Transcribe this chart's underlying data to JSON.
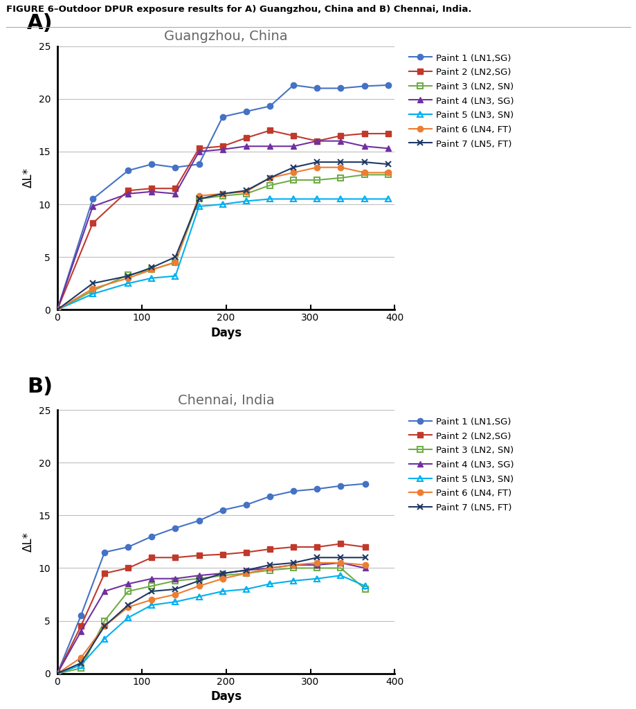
{
  "figure_title": "FIGURE 6–Outdoor DPUR exposure results for A) Guangzhou, China and B) Chennai, India.",
  "panel_A_title": "Guangzhou, China",
  "panel_B_title": "Chennai, India",
  "xlabel": "Days",
  "ylabel": "ΔL*",
  "ylim": [
    0,
    25
  ],
  "yticks": [
    0,
    5,
    10,
    15,
    20,
    25
  ],
  "xlim": [
    0,
    400
  ],
  "xticks": [
    0,
    100,
    200,
    300,
    400
  ],
  "legend_labels": [
    "Paint 1 (LN1,SG)",
    "Paint 2 (LN2,SG)",
    "Paint 3 (LN2, SN)",
    "Paint 4 (LN3, SG)",
    "Paint 5 (LN3, SN)",
    "Paint 6 (LN4, FT)",
    "Paint 7 (LN5, FT)"
  ],
  "colors": [
    "#4472C4",
    "#C0392B",
    "#70AD47",
    "#7030A0",
    "#00B0F0",
    "#ED7D31",
    "#1F3864"
  ],
  "markers": [
    "o",
    "s",
    "s",
    "^",
    "^",
    "o",
    "x"
  ],
  "marker_filled": [
    true,
    true,
    false,
    true,
    false,
    true,
    false
  ],
  "panel_A": {
    "paint1": {
      "x": [
        0,
        42,
        84,
        112,
        140,
        168,
        196,
        224,
        252,
        280,
        308,
        336,
        364,
        392
      ],
      "y": [
        0,
        10.5,
        13.2,
        13.8,
        13.5,
        13.8,
        18.3,
        18.8,
        19.3,
        21.3,
        21.0,
        21.0,
        21.2,
        21.3
      ]
    },
    "paint2": {
      "x": [
        0,
        42,
        84,
        112,
        140,
        168,
        196,
        224,
        252,
        280,
        308,
        336,
        364,
        392
      ],
      "y": [
        0,
        8.2,
        11.3,
        11.5,
        11.5,
        15.3,
        15.5,
        16.3,
        17.0,
        16.5,
        16.0,
        16.5,
        16.7,
        16.7
      ]
    },
    "paint3": {
      "x": [
        0,
        42,
        84,
        112,
        140,
        168,
        196,
        224,
        252,
        280,
        308,
        336,
        364,
        392
      ],
      "y": [
        0,
        1.8,
        3.3,
        3.8,
        4.5,
        10.5,
        10.8,
        11.0,
        11.8,
        12.3,
        12.3,
        12.5,
        12.8,
        12.8
      ]
    },
    "paint4": {
      "x": [
        0,
        42,
        84,
        112,
        140,
        168,
        196,
        224,
        252,
        280,
        308,
        336,
        364,
        392
      ],
      "y": [
        0,
        9.8,
        11.0,
        11.2,
        11.0,
        15.0,
        15.2,
        15.5,
        15.5,
        15.5,
        16.0,
        16.0,
        15.5,
        15.3
      ]
    },
    "paint5": {
      "x": [
        0,
        42,
        84,
        112,
        140,
        168,
        196,
        224,
        252,
        280,
        308,
        336,
        364,
        392
      ],
      "y": [
        0,
        1.5,
        2.5,
        3.0,
        3.2,
        9.8,
        10.0,
        10.3,
        10.5,
        10.5,
        10.5,
        10.5,
        10.5,
        10.5
      ]
    },
    "paint6": {
      "x": [
        0,
        42,
        84,
        112,
        140,
        168,
        196,
        224,
        252,
        280,
        308,
        336,
        364,
        392
      ],
      "y": [
        0,
        2.0,
        3.0,
        3.8,
        4.5,
        10.8,
        11.0,
        11.2,
        12.5,
        13.0,
        13.5,
        13.5,
        13.0,
        13.0
      ]
    },
    "paint7": {
      "x": [
        0,
        42,
        84,
        112,
        140,
        168,
        196,
        224,
        252,
        280,
        308,
        336,
        364,
        392
      ],
      "y": [
        0,
        2.5,
        3.2,
        4.0,
        5.0,
        10.5,
        11.0,
        11.3,
        12.5,
        13.5,
        14.0,
        14.0,
        14.0,
        13.8
      ]
    }
  },
  "panel_B": {
    "paint1": {
      "x": [
        0,
        28,
        56,
        84,
        112,
        140,
        168,
        196,
        224,
        252,
        280,
        308,
        336,
        365
      ],
      "y": [
        0,
        5.5,
        11.5,
        12.0,
        13.0,
        13.8,
        14.5,
        15.5,
        16.0,
        16.8,
        17.3,
        17.5,
        17.8,
        18.0
      ]
    },
    "paint2": {
      "x": [
        0,
        28,
        56,
        84,
        112,
        140,
        168,
        196,
        224,
        252,
        280,
        308,
        336,
        365
      ],
      "y": [
        0,
        4.5,
        9.5,
        10.0,
        11.0,
        11.0,
        11.2,
        11.3,
        11.5,
        11.8,
        12.0,
        12.0,
        12.3,
        12.0
      ]
    },
    "paint3": {
      "x": [
        0,
        28,
        56,
        84,
        112,
        140,
        168,
        196,
        224,
        252,
        280,
        308,
        336,
        365
      ],
      "y": [
        0,
        0.5,
        5.0,
        7.8,
        8.3,
        8.8,
        9.0,
        9.3,
        9.5,
        9.8,
        10.0,
        10.0,
        10.0,
        8.0
      ]
    },
    "paint4": {
      "x": [
        0,
        28,
        56,
        84,
        112,
        140,
        168,
        196,
        224,
        252,
        280,
        308,
        336,
        365
      ],
      "y": [
        0,
        4.0,
        7.8,
        8.5,
        9.0,
        9.0,
        9.3,
        9.5,
        9.8,
        10.0,
        10.3,
        10.3,
        10.5,
        10.0
      ]
    },
    "paint5": {
      "x": [
        0,
        28,
        56,
        84,
        112,
        140,
        168,
        196,
        224,
        252,
        280,
        308,
        336,
        365
      ],
      "y": [
        0,
        0.8,
        3.3,
        5.3,
        6.5,
        6.8,
        7.3,
        7.8,
        8.0,
        8.5,
        8.8,
        9.0,
        9.3,
        8.3
      ]
    },
    "paint6": {
      "x": [
        0,
        28,
        56,
        84,
        112,
        140,
        168,
        196,
        224,
        252,
        280,
        308,
        336,
        365
      ],
      "y": [
        0,
        1.5,
        4.5,
        6.3,
        7.0,
        7.5,
        8.3,
        9.0,
        9.5,
        10.0,
        10.3,
        10.5,
        10.5,
        10.3
      ]
    },
    "paint7": {
      "x": [
        0,
        28,
        56,
        84,
        112,
        140,
        168,
        196,
        224,
        252,
        280,
        308,
        336,
        365
      ],
      "y": [
        0,
        1.0,
        4.5,
        6.5,
        7.8,
        8.0,
        8.8,
        9.5,
        9.8,
        10.3,
        10.5,
        11.0,
        11.0,
        11.0
      ]
    }
  },
  "background_color": "#FFFFFF",
  "grid_color": "#BEBEBE",
  "spine_color": "#000000"
}
